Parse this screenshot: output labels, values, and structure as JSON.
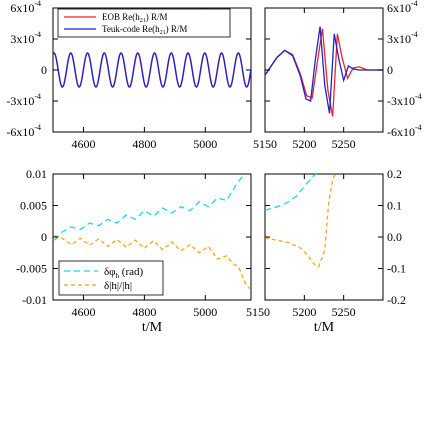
{
  "chart_data": [
    {
      "panel": "top-left",
      "type": "line",
      "x": [
        4505,
        4560,
        4615,
        4670,
        4725,
        4780,
        4835,
        4890,
        4945,
        5000,
        5055,
        5110,
        5145
      ],
      "ylim": [
        -0.0006,
        0.0006
      ],
      "xlim": [
        4500,
        5150
      ],
      "ytick_labels": [
        "-6x10",
        "-3x10",
        "0",
        "3x10",
        "6x10"
      ],
      "ytick_exponents": [
        "-4",
        "-4",
        "",
        "-4",
        "-4"
      ],
      "ytick_values": [
        -0.0006,
        -0.0003,
        0,
        0.0003,
        0.0006
      ],
      "xtick_labels": [
        "4600",
        "4800",
        "5000"
      ],
      "xtick_values": [
        4600,
        4800,
        5000
      ],
      "legend_position": "top",
      "series": [
        {
          "name": "EOB Re(h21) R/M",
          "legend_main": "EOB Re(h",
          "legend_sub": "21",
          "legend_tail": ") R/M",
          "color": "#e8262b",
          "dash": "solid",
          "amplitude": 0.000165,
          "period": 55
        },
        {
          "name": "Teuk-code Re(h21) R/M",
          "legend_main": "Teuk-code Re(h",
          "legend_sub": "21",
          "legend_tail": ") R/M",
          "color": "#2222cc",
          "dash": "solid",
          "amplitude": 0.000165,
          "period": 55
        }
      ]
    },
    {
      "panel": "top-right",
      "type": "line",
      "xlim": [
        5150,
        5300
      ],
      "ylim": [
        -0.0006,
        0.0006
      ],
      "ytick_labels": [
        "-6x10",
        "-3x10",
        "0",
        "3x10",
        "6x10"
      ],
      "ytick_exponents": [
        "-4",
        "-4",
        "",
        "-4",
        "-4"
      ],
      "ytick_values": [
        -0.0006,
        -0.0003,
        0,
        0.0003,
        0.0006
      ],
      "series": [
        {
          "name": "EOB",
          "color": "#e8262b",
          "x": [
            5150,
            5165,
            5175,
            5185,
            5195,
            5203,
            5210,
            5217,
            5223,
            5230,
            5236,
            5242,
            5248,
            5255,
            5262,
            5270,
            5280,
            5290,
            5300
          ],
          "y": [
            -5e-05,
            0.00012,
            0.000188,
            0.00015,
            -4e-05,
            -0.00025,
            -0.00027,
            0.0001,
            0.0004,
            -0.0002,
            -0.00045,
            0.00035,
            0.00012,
            -8e-05,
            2e-05,
            3e-05,
            0.0,
            0.0,
            0.0
          ]
        },
        {
          "name": "Teuk-code",
          "color": "#2222cc",
          "x": [
            5150,
            5165,
            5175,
            5185,
            5195,
            5202,
            5208,
            5214,
            5220,
            5226,
            5232,
            5238,
            5244,
            5250,
            5256,
            5262,
            5270,
            5280,
            5290,
            5300
          ],
          "y": [
            -5e-05,
            0.00012,
            0.00019,
            0.00014,
            -6e-05,
            -0.00028,
            -0.0003,
            0.0001,
            0.00042,
            -0.00015,
            -0.00042,
            0.00035,
            0.0001,
            -0.0001,
            4e-05,
            1e-05,
            0.0,
            0.0,
            0.0,
            0.0
          ]
        }
      ]
    },
    {
      "panel": "bottom-left",
      "type": "line",
      "xlim": [
        4500,
        5150
      ],
      "ylim": [
        -0.01,
        0.01
      ],
      "xlabel": "t/M",
      "ytick_labels": [
        "-0.01",
        "-0.005",
        "0",
        "0.005",
        "0.01"
      ],
      "ytick_values": [
        -0.01,
        -0.005,
        0,
        0.005,
        0.01
      ],
      "xtick_labels": [
        "4600",
        "4800",
        "5000",
        "5150"
      ],
      "xtick_values": [
        4600,
        4800,
        5000,
        5150
      ],
      "legend_position": "bottom-left",
      "series": [
        {
          "name": "δφh (rad)",
          "legend_main": "δφ",
          "legend_sub": "h",
          "legend_tail": " (rad)",
          "color": "#19d9e6",
          "dash": "long",
          "x": [
            4505,
            4530,
            4560,
            4590,
            4620,
            4650,
            4680,
            4710,
            4740,
            4770,
            4800,
            4830,
            4860,
            4890,
            4920,
            4950,
            4980,
            5010,
            5040,
            5070,
            5100,
            5120,
            5135
          ],
          "y": [
            -0.0005,
            0.0008,
            0.0016,
            0.0012,
            0.0022,
            0.0018,
            0.0028,
            0.0022,
            0.0035,
            0.0028,
            0.0042,
            0.0033,
            0.0046,
            0.0038,
            0.0048,
            0.0042,
            0.0056,
            0.0048,
            0.0062,
            0.0058,
            0.0082,
            0.0095,
            0.0105
          ]
        },
        {
          "name": "δ|h|/|h|",
          "legend_main": "δ|h|/|h|",
          "legend_sub": "",
          "legend_tail": "",
          "color": "#f2a81d",
          "dash": "short",
          "x": [
            4505,
            4530,
            4560,
            4590,
            4620,
            4650,
            4680,
            4710,
            4740,
            4770,
            4800,
            4830,
            4860,
            4890,
            4920,
            4950,
            4980,
            5010,
            5040,
            5070,
            5090,
            5110,
            5130,
            5145
          ],
          "y": [
            0.0002,
            -0.0002,
            -0.0012,
            -0.0002,
            -0.0013,
            -0.0003,
            -0.0015,
            -0.0004,
            -0.0016,
            -0.0005,
            -0.0018,
            -0.0006,
            -0.002,
            -0.0008,
            -0.0022,
            -0.0012,
            -0.0025,
            -0.0015,
            -0.0035,
            -0.003,
            -0.0042,
            -0.0048,
            -0.0072,
            -0.0082
          ]
        }
      ]
    },
    {
      "panel": "bottom-right",
      "type": "line",
      "xlim": [
        5150,
        5300
      ],
      "ylim": [
        -0.2,
        0.2
      ],
      "xlabel": "t/M",
      "ytick_labels": [
        "-0.2",
        "-0.1",
        "0.0",
        "0.1",
        "0.2"
      ],
      "ytick_values": [
        -0.2,
        -0.1,
        0,
        0.1,
        0.2
      ],
      "xtick_labels": [
        "5200",
        "5250"
      ],
      "xtick_values": [
        5200,
        5250
      ],
      "series": [
        {
          "name": "δφh (rad)",
          "color": "#19d9e6",
          "dash": "long",
          "x": [
            5150,
            5160,
            5170,
            5180,
            5190,
            5200,
            5210,
            5215
          ],
          "y": [
            0.085,
            0.092,
            0.1,
            0.112,
            0.13,
            0.16,
            0.19,
            0.2
          ]
        },
        {
          "name": "δ|h|/|h|",
          "color": "#f2a81d",
          "dash": "short",
          "x": [
            5150,
            5165,
            5180,
            5195,
            5205,
            5212,
            5218,
            5222,
            5226,
            5228,
            5231,
            5236,
            5239
          ],
          "y": [
            -0.003,
            -0.01,
            -0.018,
            -0.035,
            -0.06,
            -0.085,
            -0.095,
            -0.07,
            -0.04,
            0.02,
            0.11,
            0.18,
            0.2
          ]
        }
      ]
    }
  ]
}
